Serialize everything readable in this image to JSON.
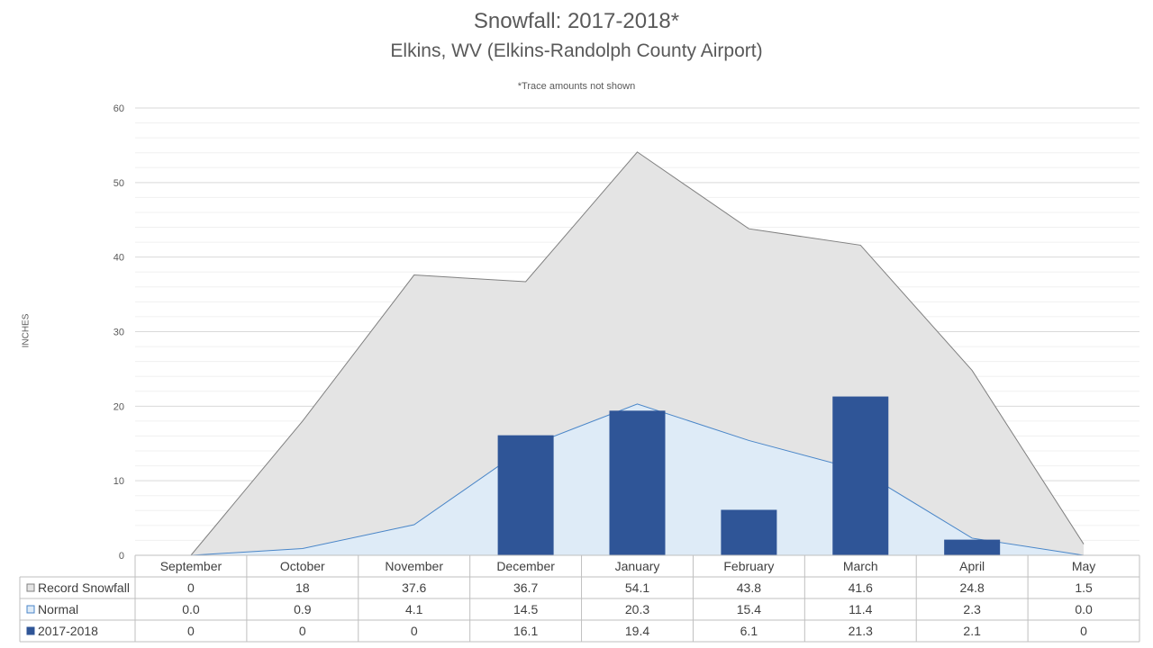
{
  "chart_data": {
    "type": "bar",
    "title": "Snowfall: 2017-2018*",
    "subtitle": "Elkins, WV (Elkins-Randolph County Airport)",
    "note": "*Trace amounts not shown",
    "ylabel": "INCHES",
    "ylim": [
      0,
      60
    ],
    "yticks": [
      "0",
      "10",
      "20",
      "30",
      "40",
      "50",
      "60"
    ],
    "grid": true,
    "categories": [
      "September",
      "October",
      "November",
      "December",
      "January",
      "February",
      "March",
      "April",
      "May"
    ],
    "series": [
      {
        "name": "Record Snowfall",
        "kind": "area",
        "color": "#e4e4e4",
        "line_color": "#808080",
        "values": [
          0,
          18,
          37.6,
          36.7,
          54.1,
          43.8,
          41.6,
          24.8,
          1.5
        ],
        "labels": [
          "0",
          "18",
          "37.6",
          "36.7",
          "54.1",
          "43.8",
          "41.6",
          "24.8",
          "1.5"
        ]
      },
      {
        "name": "Normal",
        "kind": "area",
        "color": "#deebf7",
        "line_color": "#4a86c8",
        "values": [
          0.0,
          0.9,
          4.1,
          14.5,
          20.3,
          15.4,
          11.4,
          2.3,
          0.0
        ],
        "labels": [
          "0.0",
          "0.9",
          "4.1",
          "14.5",
          "20.3",
          "15.4",
          "11.4",
          "2.3",
          "0.0"
        ]
      },
      {
        "name": "2017-2018",
        "kind": "bar",
        "color": "#2f5597",
        "values": [
          0,
          0,
          0,
          16.1,
          19.4,
          6.1,
          21.3,
          2.1,
          0
        ],
        "labels": [
          "0",
          "0",
          "0",
          "16.1",
          "19.4",
          "6.1",
          "21.3",
          "2.1",
          "0"
        ]
      }
    ]
  }
}
